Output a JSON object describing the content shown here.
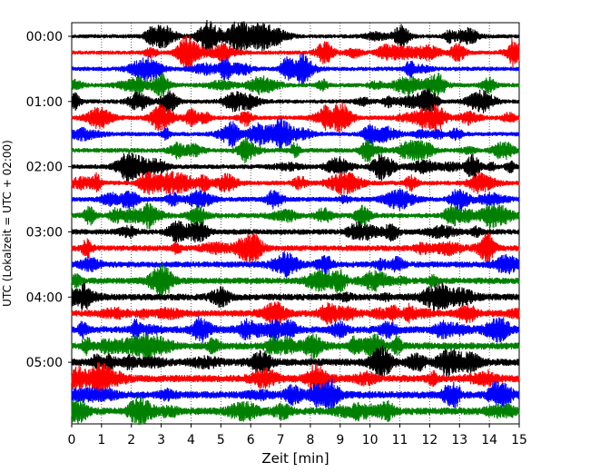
{
  "chart_data": {
    "type": "line",
    "title": "",
    "xlabel": "Zeit  [min]",
    "ylabel": "UTC (Lokalzeit = UTC + 02:00)",
    "xlim": [
      0,
      15
    ],
    "xticks": [
      "0",
      "1",
      "2",
      "3",
      "4",
      "5",
      "6",
      "7",
      "8",
      "9",
      "10",
      "11",
      "12",
      "13",
      "14",
      "15"
    ],
    "yticks": [
      "00:00",
      "01:00",
      "02:00",
      "03:00",
      "04:00",
      "05:00"
    ],
    "grid": "vertical dotted at each minute",
    "trace_interval_minutes": 15,
    "color_cycle": [
      "#000000",
      "#ff0000",
      "#0000ff",
      "#008000"
    ],
    "traces": [
      {
        "start": "00:00",
        "color": "#000000",
        "noise_level": 0.35
      },
      {
        "start": "00:15",
        "color": "#ff0000",
        "noise_level": 0.35
      },
      {
        "start": "00:30",
        "color": "#0000ff",
        "noise_level": 0.4
      },
      {
        "start": "00:45",
        "color": "#008000",
        "noise_level": 0.4
      },
      {
        "start": "01:00",
        "color": "#000000",
        "noise_level": 0.4
      },
      {
        "start": "01:15",
        "color": "#ff0000",
        "noise_level": 0.4
      },
      {
        "start": "01:30",
        "color": "#0000ff",
        "noise_level": 0.4
      },
      {
        "start": "01:45",
        "color": "#008000",
        "noise_level": 0.45
      },
      {
        "start": "02:00",
        "color": "#000000",
        "noise_level": 0.45
      },
      {
        "start": "02:15",
        "color": "#ff0000",
        "noise_level": 0.45
      },
      {
        "start": "02:30",
        "color": "#0000ff",
        "noise_level": 0.5
      },
      {
        "start": "02:45",
        "color": "#008000",
        "noise_level": 0.55
      },
      {
        "start": "03:00",
        "color": "#000000",
        "noise_level": 0.6
      },
      {
        "start": "03:15",
        "color": "#ff0000",
        "noise_level": 0.65
      },
      {
        "start": "03:30",
        "color": "#0000ff",
        "noise_level": 0.7
      },
      {
        "start": "03:45",
        "color": "#008000",
        "noise_level": 0.75
      },
      {
        "start": "04:00",
        "color": "#000000",
        "noise_level": 0.8
      },
      {
        "start": "04:15",
        "color": "#ff0000",
        "noise_level": 0.8
      },
      {
        "start": "04:30",
        "color": "#0000ff",
        "noise_level": 0.85
      },
      {
        "start": "04:45",
        "color": "#008000",
        "noise_level": 0.85
      },
      {
        "start": "05:00",
        "color": "#000000",
        "noise_level": 0.9
      },
      {
        "start": "05:15",
        "color": "#ff0000",
        "noise_level": 0.9
      },
      {
        "start": "05:30",
        "color": "#0000ff",
        "noise_level": 0.9
      },
      {
        "start": "05:45",
        "color": "#008000",
        "noise_level": 0.9
      }
    ]
  }
}
